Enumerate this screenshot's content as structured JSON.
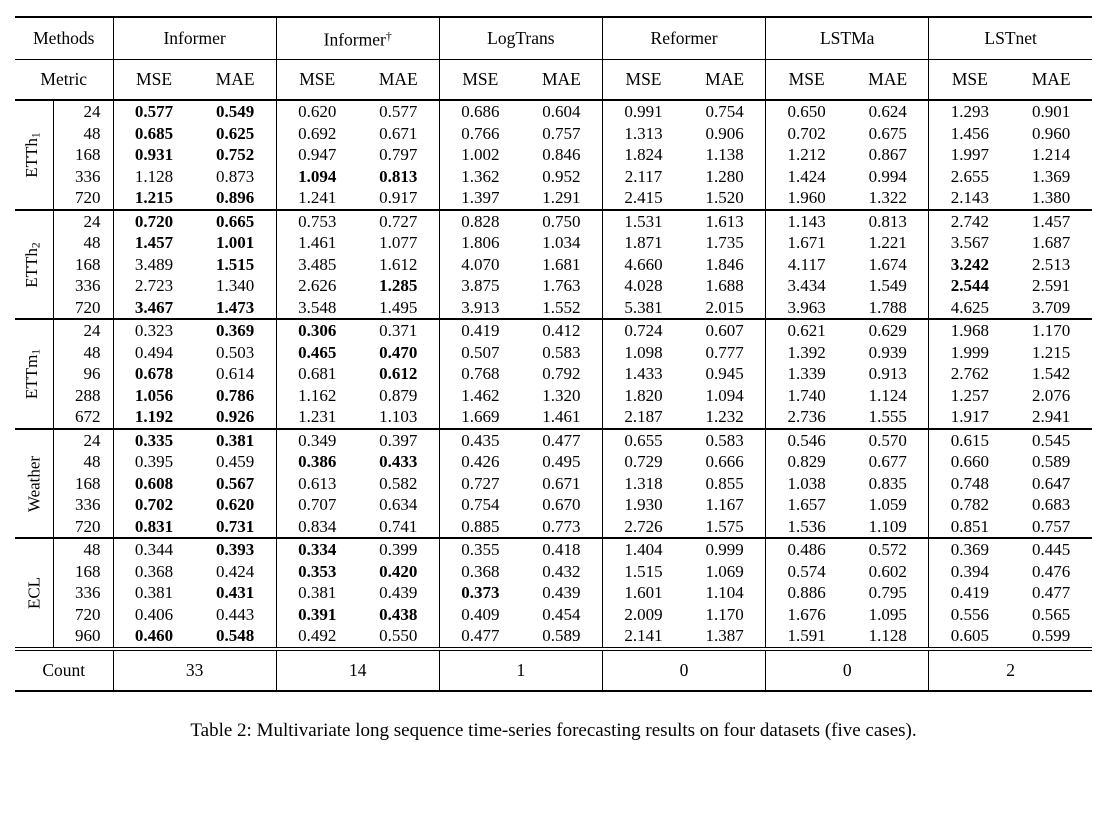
{
  "table": {
    "methods_label": "Methods",
    "metric_label": "Metric",
    "count_label": "Count",
    "mse_label": "MSE",
    "mae_label": "MAE",
    "methods": [
      {
        "name": "Informer",
        "sup": ""
      },
      {
        "name": "Informer",
        "sup": "†"
      },
      {
        "name": "LogTrans",
        "sup": ""
      },
      {
        "name": "Reformer",
        "sup": ""
      },
      {
        "name": "LSTMa",
        "sup": ""
      },
      {
        "name": "LSTnet",
        "sup": ""
      }
    ],
    "groups": [
      {
        "label": "ETTh",
        "sub": "1",
        "rows": [
          {
            "len": "24",
            "values": [
              "0.577",
              "0.549",
              "0.620",
              "0.577",
              "0.686",
              "0.604",
              "0.991",
              "0.754",
              "0.650",
              "0.624",
              "1.293",
              "0.901"
            ],
            "bold": [
              0,
              1
            ]
          },
          {
            "len": "48",
            "values": [
              "0.685",
              "0.625",
              "0.692",
              "0.671",
              "0.766",
              "0.757",
              "1.313",
              "0.906",
              "0.702",
              "0.675",
              "1.456",
              "0.960"
            ],
            "bold": [
              0,
              1
            ]
          },
          {
            "len": "168",
            "values": [
              "0.931",
              "0.752",
              "0.947",
              "0.797",
              "1.002",
              "0.846",
              "1.824",
              "1.138",
              "1.212",
              "0.867",
              "1.997",
              "1.214"
            ],
            "bold": [
              0,
              1
            ]
          },
          {
            "len": "336",
            "values": [
              "1.128",
              "0.873",
              "1.094",
              "0.813",
              "1.362",
              "0.952",
              "2.117",
              "1.280",
              "1.424",
              "0.994",
              "2.655",
              "1.369"
            ],
            "bold": [
              2,
              3
            ]
          },
          {
            "len": "720",
            "values": [
              "1.215",
              "0.896",
              "1.241",
              "0.917",
              "1.397",
              "1.291",
              "2.415",
              "1.520",
              "1.960",
              "1.322",
              "2.143",
              "1.380"
            ],
            "bold": [
              0,
              1
            ]
          }
        ]
      },
      {
        "label": "ETTh",
        "sub": "2",
        "rows": [
          {
            "len": "24",
            "values": [
              "0.720",
              "0.665",
              "0.753",
              "0.727",
              "0.828",
              "0.750",
              "1.531",
              "1.613",
              "1.143",
              "0.813",
              "2.742",
              "1.457"
            ],
            "bold": [
              0,
              1
            ]
          },
          {
            "len": "48",
            "values": [
              "1.457",
              "1.001",
              "1.461",
              "1.077",
              "1.806",
              "1.034",
              "1.871",
              "1.735",
              "1.671",
              "1.221",
              "3.567",
              "1.687"
            ],
            "bold": [
              0,
              1
            ]
          },
          {
            "len": "168",
            "values": [
              "3.489",
              "1.515",
              "3.485",
              "1.612",
              "4.070",
              "1.681",
              "4.660",
              "1.846",
              "4.117",
              "1.674",
              "3.242",
              "2.513"
            ],
            "bold": [
              1,
              10
            ]
          },
          {
            "len": "336",
            "values": [
              "2.723",
              "1.340",
              "2.626",
              "1.285",
              "3.875",
              "1.763",
              "4.028",
              "1.688",
              "3.434",
              "1.549",
              "2.544",
              "2.591"
            ],
            "bold": [
              3,
              10
            ]
          },
          {
            "len": "720",
            "values": [
              "3.467",
              "1.473",
              "3.548",
              "1.495",
              "3.913",
              "1.552",
              "5.381",
              "2.015",
              "3.963",
              "1.788",
              "4.625",
              "3.709"
            ],
            "bold": [
              0,
              1
            ]
          }
        ]
      },
      {
        "label": "ETTm",
        "sub": "1",
        "rows": [
          {
            "len": "24",
            "values": [
              "0.323",
              "0.369",
              "0.306",
              "0.371",
              "0.419",
              "0.412",
              "0.724",
              "0.607",
              "0.621",
              "0.629",
              "1.968",
              "1.170"
            ],
            "bold": [
              1,
              2
            ]
          },
          {
            "len": "48",
            "values": [
              "0.494",
              "0.503",
              "0.465",
              "0.470",
              "0.507",
              "0.583",
              "1.098",
              "0.777",
              "1.392",
              "0.939",
              "1.999",
              "1.215"
            ],
            "bold": [
              2,
              3
            ]
          },
          {
            "len": "96",
            "values": [
              "0.678",
              "0.614",
              "0.681",
              "0.612",
              "0.768",
              "0.792",
              "1.433",
              "0.945",
              "1.339",
              "0.913",
              "2.762",
              "1.542"
            ],
            "bold": [
              0,
              3
            ]
          },
          {
            "len": "288",
            "values": [
              "1.056",
              "0.786",
              "1.162",
              "0.879",
              "1.462",
              "1.320",
              "1.820",
              "1.094",
              "1.740",
              "1.124",
              "1.257",
              "2.076"
            ],
            "bold": [
              0,
              1
            ]
          },
          {
            "len": "672",
            "values": [
              "1.192",
              "0.926",
              "1.231",
              "1.103",
              "1.669",
              "1.461",
              "2.187",
              "1.232",
              "2.736",
              "1.555",
              "1.917",
              "2.941"
            ],
            "bold": [
              0,
              1
            ]
          }
        ]
      },
      {
        "label": "Weather",
        "sub": "",
        "rows": [
          {
            "len": "24",
            "values": [
              "0.335",
              "0.381",
              "0.349",
              "0.397",
              "0.435",
              "0.477",
              "0.655",
              "0.583",
              "0.546",
              "0.570",
              "0.615",
              "0.545"
            ],
            "bold": [
              0,
              1
            ]
          },
          {
            "len": "48",
            "values": [
              "0.395",
              "0.459",
              "0.386",
              "0.433",
              "0.426",
              "0.495",
              "0.729",
              "0.666",
              "0.829",
              "0.677",
              "0.660",
              "0.589"
            ],
            "bold": [
              2,
              3
            ]
          },
          {
            "len": "168",
            "values": [
              "0.608",
              "0.567",
              "0.613",
              "0.582",
              "0.727",
              "0.671",
              "1.318",
              "0.855",
              "1.038",
              "0.835",
              "0.748",
              "0.647"
            ],
            "bold": [
              0,
              1
            ]
          },
          {
            "len": "336",
            "values": [
              "0.702",
              "0.620",
              "0.707",
              "0.634",
              "0.754",
              "0.670",
              "1.930",
              "1.167",
              "1.657",
              "1.059",
              "0.782",
              "0.683"
            ],
            "bold": [
              0,
              1
            ]
          },
          {
            "len": "720",
            "values": [
              "0.831",
              "0.731",
              "0.834",
              "0.741",
              "0.885",
              "0.773",
              "2.726",
              "1.575",
              "1.536",
              "1.109",
              "0.851",
              "0.757"
            ],
            "bold": [
              0,
              1
            ]
          }
        ]
      },
      {
        "label": "ECL",
        "sub": "",
        "rows": [
          {
            "len": "48",
            "values": [
              "0.344",
              "0.393",
              "0.334",
              "0.399",
              "0.355",
              "0.418",
              "1.404",
              "0.999",
              "0.486",
              "0.572",
              "0.369",
              "0.445"
            ],
            "bold": [
              1,
              2
            ]
          },
          {
            "len": "168",
            "values": [
              "0.368",
              "0.424",
              "0.353",
              "0.420",
              "0.368",
              "0.432",
              "1.515",
              "1.069",
              "0.574",
              "0.602",
              "0.394",
              "0.476"
            ],
            "bold": [
              2,
              3
            ]
          },
          {
            "len": "336",
            "values": [
              "0.381",
              "0.431",
              "0.381",
              "0.439",
              "0.373",
              "0.439",
              "1.601",
              "1.104",
              "0.886",
              "0.795",
              "0.419",
              "0.477"
            ],
            "bold": [
              1,
              4
            ]
          },
          {
            "len": "720",
            "values": [
              "0.406",
              "0.443",
              "0.391",
              "0.438",
              "0.409",
              "0.454",
              "2.009",
              "1.170",
              "1.676",
              "1.095",
              "0.556",
              "0.565"
            ],
            "bold": [
              2,
              3
            ]
          },
          {
            "len": "960",
            "values": [
              "0.460",
              "0.548",
              "0.492",
              "0.550",
              "0.477",
              "0.589",
              "2.141",
              "1.387",
              "1.591",
              "1.128",
              "0.605",
              "0.599"
            ],
            "bold": [
              0,
              1
            ]
          }
        ]
      }
    ],
    "counts": [
      "33",
      "14",
      "1",
      "0",
      "0",
      "2"
    ]
  },
  "caption": "Table 2: Multivariate long sequence time-series forecasting results on four datasets (five cases)."
}
